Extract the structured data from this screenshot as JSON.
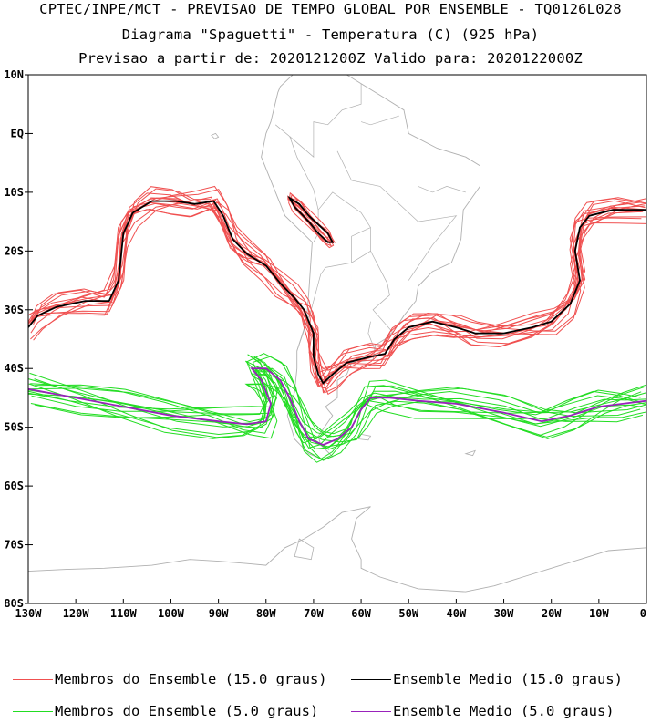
{
  "title": {
    "line1": "CPTEC/INPE/MCT - PREVISAO DE TEMPO GLOBAL POR ENSEMBLE - TQ0126L028",
    "line2": "Diagrama \"Spaguetti\" - Temperatura (C) (925 hPa)",
    "line3": "Previsao a partir de: 2020121200Z  Valido para: 2020122000Z"
  },
  "map": {
    "lon_range": [
      -130,
      0
    ],
    "lat_range": [
      -80,
      10
    ],
    "lat_ticks": [
      "10N",
      "EQ",
      "10S",
      "20S",
      "30S",
      "40S",
      "50S",
      "60S",
      "70S",
      "80S"
    ],
    "lon_ticks": [
      "130W",
      "120W",
      "110W",
      "100W",
      "90W",
      "80W",
      "70W",
      "60W",
      "50W",
      "40W",
      "30W",
      "20W",
      "10W",
      "0"
    ],
    "coast_color": "#b0b0b0"
  },
  "legend": {
    "items": [
      {
        "label": "Membros do Ensemble (15.0 graus)",
        "color": "#f05050"
      },
      {
        "label": "Ensemble Medio (15.0 graus)",
        "color": "#000000"
      },
      {
        "label": "Membros do Ensemble (5.0 graus)",
        "color": "#22dd22"
      },
      {
        "label": "Ensemble Medio (5.0 graus)",
        "color": "#9922bb"
      }
    ]
  },
  "series": {
    "mean15": [
      [
        -130,
        -33
      ],
      [
        -128,
        -31
      ],
      [
        -124,
        -29.5
      ],
      [
        -118,
        -28.5
      ],
      [
        -113,
        -28.5
      ],
      [
        -111,
        -25
      ],
      [
        -110,
        -17
      ],
      [
        -108,
        -13.5
      ],
      [
        -104,
        -11.5
      ],
      [
        -99,
        -11.5
      ],
      [
        -95,
        -12
      ],
      [
        -91,
        -11.5
      ],
      [
        -89,
        -14
      ],
      [
        -87,
        -18
      ],
      [
        -84,
        -20.5
      ],
      [
        -80,
        -22.5
      ],
      [
        -77,
        -25.5
      ],
      [
        -74,
        -28
      ],
      [
        -72,
        -30
      ],
      [
        -71,
        -32
      ],
      [
        -70,
        -34
      ],
      [
        -70,
        -38
      ],
      [
        -69,
        -41
      ],
      [
        -68,
        -42.5
      ],
      [
        -66,
        -41
      ],
      [
        -63,
        -39
      ],
      [
        -58,
        -38
      ],
      [
        -55,
        -37.5
      ],
      [
        -53,
        -35
      ],
      [
        -50,
        -33
      ],
      [
        -45,
        -32
      ],
      [
        -40,
        -33
      ],
      [
        -36,
        -34
      ],
      [
        -30,
        -34
      ],
      [
        -24,
        -33
      ],
      [
        -20,
        -32
      ],
      [
        -16,
        -29
      ],
      [
        -14,
        -25
      ],
      [
        -15,
        -20
      ],
      [
        -14,
        -16
      ],
      [
        -12,
        -14
      ],
      [
        -7,
        -13
      ],
      [
        0,
        -13
      ]
    ],
    "mean15_andes": [
      [
        -75,
        -11
      ],
      [
        -73,
        -12
      ],
      [
        -71,
        -14
      ],
      [
        -69,
        -15.5
      ],
      [
        -67,
        -17
      ],
      [
        -66,
        -18.5
      ],
      [
        -67,
        -18.5
      ],
      [
        -69,
        -17
      ],
      [
        -71,
        -15
      ],
      [
        -74,
        -12.5
      ],
      [
        -75,
        -11
      ]
    ],
    "mean5": [
      [
        -130,
        -43.5
      ],
      [
        -120,
        -45
      ],
      [
        -110,
        -46.5
      ],
      [
        -100,
        -48
      ],
      [
        -90,
        -49
      ],
      [
        -84,
        -49.5
      ],
      [
        -80,
        -49
      ],
      [
        -79,
        -46
      ],
      [
        -81,
        -42
      ],
      [
        -83,
        -40
      ],
      [
        -80,
        -40
      ],
      [
        -77,
        -42
      ],
      [
        -75,
        -45
      ],
      [
        -73,
        -49
      ],
      [
        -71,
        -52
      ],
      [
        -68,
        -53
      ],
      [
        -65,
        -52
      ],
      [
        -62,
        -50
      ],
      [
        -60,
        -47
      ],
      [
        -58,
        -45
      ],
      [
        -54,
        -45
      ],
      [
        -48,
        -45.5
      ],
      [
        -40,
        -46
      ],
      [
        -30,
        -47.5
      ],
      [
        -22,
        -49
      ],
      [
        -16,
        -48
      ],
      [
        -10,
        -46.5
      ],
      [
        -5,
        -46
      ],
      [
        0,
        -45.5
      ]
    ]
  }
}
